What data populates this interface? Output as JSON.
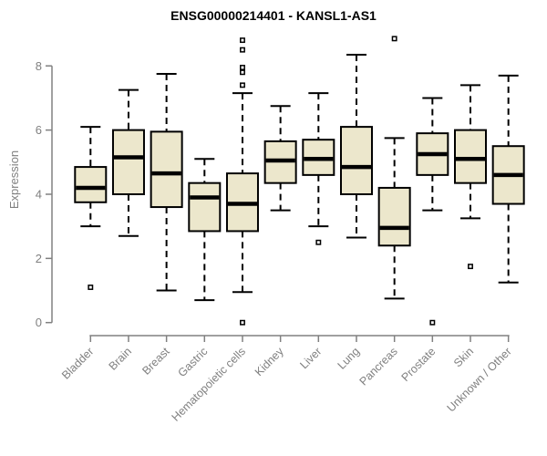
{
  "chart_data": {
    "type": "box",
    "title": "ENSG00000214401 - KANSL1-AS1",
    "ylabel": "Expression",
    "xlabel": "",
    "ylim": [
      0,
      8.9
    ],
    "yticks": [
      0,
      2,
      4,
      6,
      8
    ],
    "grid": false,
    "legend": null,
    "categories": [
      "Bladder",
      "Brain",
      "Breast",
      "Gastric",
      "Hematopoietic cells",
      "Kidney",
      "Liver",
      "Lung",
      "Pancreas",
      "Prostate",
      "Skin",
      "Unknown / Other"
    ],
    "series": [
      {
        "name": "Bladder",
        "whislo": 3.0,
        "q1": 3.75,
        "med": 4.2,
        "q3": 4.85,
        "whishi": 6.1,
        "outliers": [
          1.1
        ]
      },
      {
        "name": "Brain",
        "whislo": 2.7,
        "q1": 4.0,
        "med": 5.15,
        "q3": 6.0,
        "whishi": 7.25,
        "outliers": []
      },
      {
        "name": "Breast",
        "whislo": 1.0,
        "q1": 3.6,
        "med": 4.65,
        "q3": 5.95,
        "whishi": 7.75,
        "outliers": []
      },
      {
        "name": "Gastric",
        "whislo": 0.7,
        "q1": 2.85,
        "med": 3.9,
        "q3": 4.35,
        "whishi": 5.1,
        "outliers": []
      },
      {
        "name": "Hematopoietic cells",
        "whislo": 0.95,
        "q1": 2.85,
        "med": 3.7,
        "q3": 4.65,
        "whishi": 7.15,
        "outliers": [
          8.8,
          8.5,
          7.95,
          7.8,
          7.4,
          0.0
        ]
      },
      {
        "name": "Kidney",
        "whislo": 3.5,
        "q1": 4.35,
        "med": 5.05,
        "q3": 5.65,
        "whishi": 6.75,
        "outliers": []
      },
      {
        "name": "Liver",
        "whislo": 3.0,
        "q1": 4.6,
        "med": 5.1,
        "q3": 5.7,
        "whishi": 7.15,
        "outliers": [
          2.5
        ]
      },
      {
        "name": "Lung",
        "whislo": 2.65,
        "q1": 4.0,
        "med": 4.85,
        "q3": 6.1,
        "whishi": 8.35,
        "outliers": []
      },
      {
        "name": "Pancreas",
        "whislo": 0.75,
        "q1": 2.4,
        "med": 2.95,
        "q3": 4.2,
        "whishi": 5.75,
        "outliers": [
          8.85
        ]
      },
      {
        "name": "Prostate",
        "whislo": 3.5,
        "q1": 4.6,
        "med": 5.25,
        "q3": 5.9,
        "whishi": 7.0,
        "outliers": [
          0.0
        ]
      },
      {
        "name": "Skin",
        "whislo": 3.25,
        "q1": 4.35,
        "med": 5.1,
        "q3": 6.0,
        "whishi": 7.4,
        "outliers": [
          1.75
        ]
      },
      {
        "name": "Unknown / Other",
        "whislo": 1.25,
        "q1": 3.7,
        "med": 4.6,
        "q3": 5.5,
        "whishi": 7.7,
        "outliers": []
      }
    ],
    "style": {
      "box_fill": "#ece7cc",
      "box_stroke": "#000000",
      "median_color": "#000000",
      "whisker_color": "#000000",
      "whisker_style": "dashed",
      "outlier_marker": "open-square",
      "axis_color": "#808080",
      "label_color": "#808080",
      "title_color": "#000000",
      "background": "#ffffff"
    }
  }
}
